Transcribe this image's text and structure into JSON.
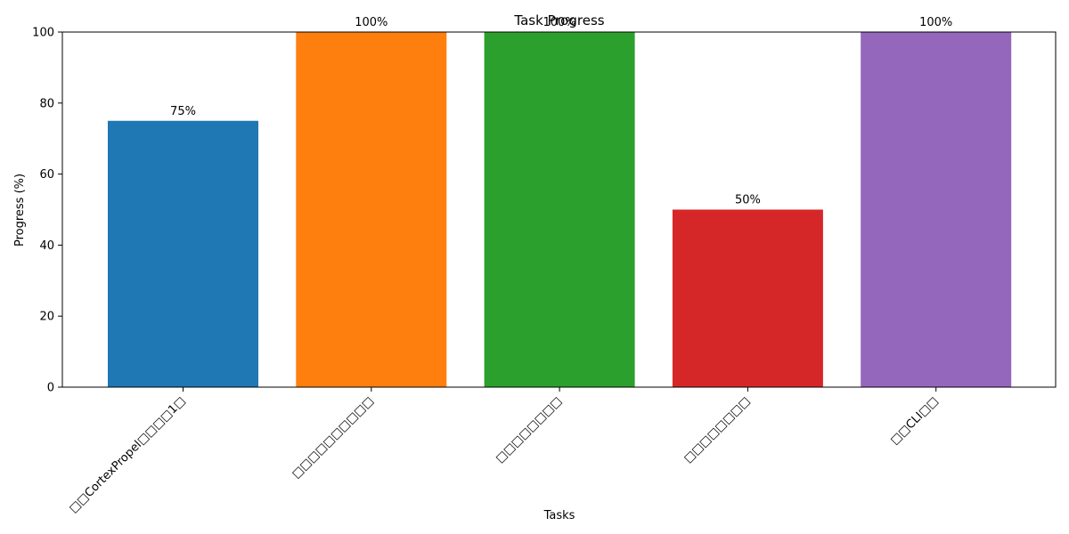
{
  "chart_data": {
    "type": "bar",
    "title": "Task Progress",
    "xlabel": "Tasks",
    "ylabel": "Progress (%)",
    "ylim": [
      0,
      100
    ],
    "yticks": [
      0,
      20,
      40,
      60,
      80,
      100
    ],
    "categories": [
      "□□CortexPropel□□□□1□",
      "□□□□□□□□□□",
      "□□□□□□□□",
      "□□□□□□□□",
      "□□CLI□□"
    ],
    "values": [
      75,
      100,
      100,
      50,
      100
    ],
    "value_labels": [
      "75%",
      "100%",
      "100%",
      "50%",
      "100%"
    ],
    "colors": [
      "#1f77b4",
      "#ff7f0e",
      "#2ca02c",
      "#d62728",
      "#9467bd"
    ],
    "grid": false,
    "legend": "none"
  }
}
